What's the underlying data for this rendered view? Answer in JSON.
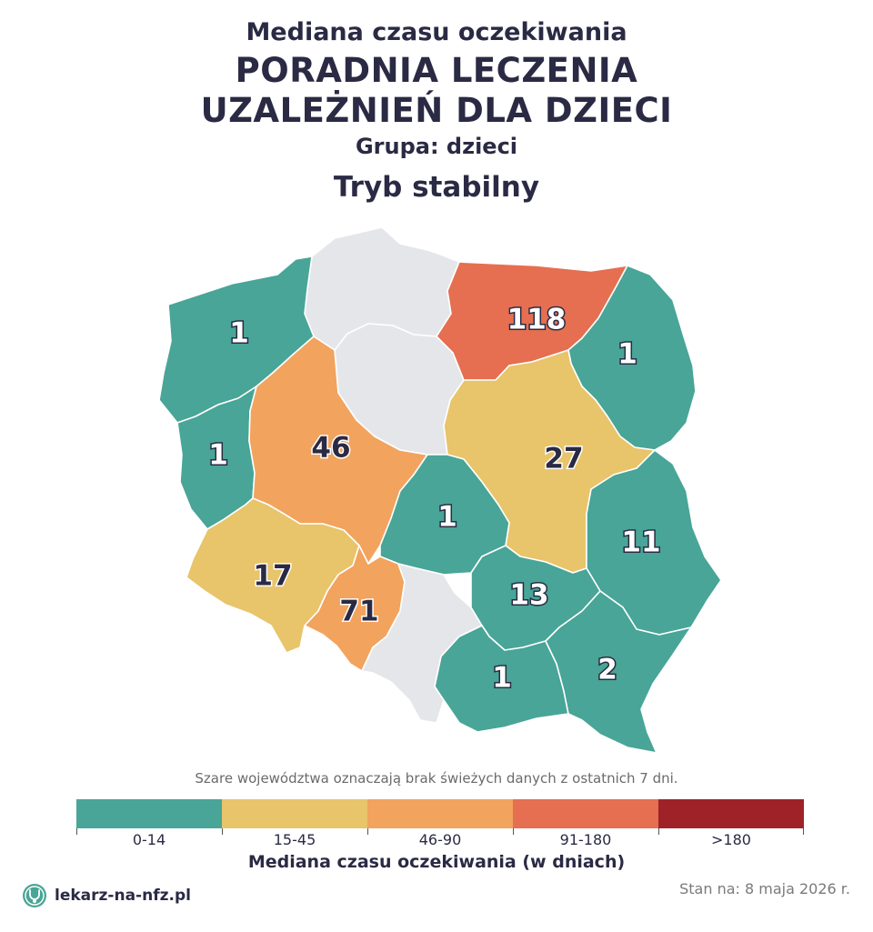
{
  "header": {
    "supertitle": "Mediana czasu oczekiwania",
    "title_line1": "PORADNIA LECZENIA",
    "title_line2": "UZALEŻNIEŃ DLA DZIECI",
    "group": "Grupa: dzieci",
    "mode": "Tryb stabilny"
  },
  "map": {
    "regions": [
      {
        "id": "zachodniopomorskie",
        "value": "1",
        "category": "0-14"
      },
      {
        "id": "pomorskie",
        "value": "",
        "category": "no-data"
      },
      {
        "id": "warminsko-mazurskie",
        "value": "118",
        "category": "91-180"
      },
      {
        "id": "podlaskie",
        "value": "1",
        "category": "0-14"
      },
      {
        "id": "lubuskie",
        "value": "1",
        "category": "0-14"
      },
      {
        "id": "wielkopolskie",
        "value": "46",
        "category": "46-90"
      },
      {
        "id": "kujawsko-pomorskie",
        "value": "",
        "category": "no-data"
      },
      {
        "id": "mazowieckie",
        "value": "27",
        "category": "15-45"
      },
      {
        "id": "lodzkie",
        "value": "1",
        "category": "0-14"
      },
      {
        "id": "lubelskie",
        "value": "11",
        "category": "0-14"
      },
      {
        "id": "dolnoslaskie",
        "value": "17",
        "category": "15-45"
      },
      {
        "id": "opolskie",
        "value": "71",
        "category": "46-90"
      },
      {
        "id": "slaskie",
        "value": "",
        "category": "no-data"
      },
      {
        "id": "swietokrzyskie",
        "value": "13",
        "category": "0-14"
      },
      {
        "id": "malopolskie",
        "value": "1",
        "category": "0-14"
      },
      {
        "id": "podkarpackie",
        "value": "2",
        "category": "0-14"
      }
    ]
  },
  "note": "Szare województwa oznaczają brak świeżych danych z ostatnich 7 dni.",
  "legend": {
    "title": "Mediana czasu oczekiwania (w dniach)",
    "items": [
      {
        "label": "0-14",
        "color": "#48a597"
      },
      {
        "label": "15-45",
        "color": "#e8c46a"
      },
      {
        "label": "46-90",
        "color": "#f2a35e"
      },
      {
        "label": "91-180",
        "color": "#e56f50"
      },
      {
        "label": ">180",
        "color": "#9e2228"
      }
    ],
    "no_data_color": "#e5e6ea"
  },
  "footer": {
    "brand": "lekarz-na-nfz.pl",
    "date": "Stan na: 8 maja 2026 r."
  }
}
